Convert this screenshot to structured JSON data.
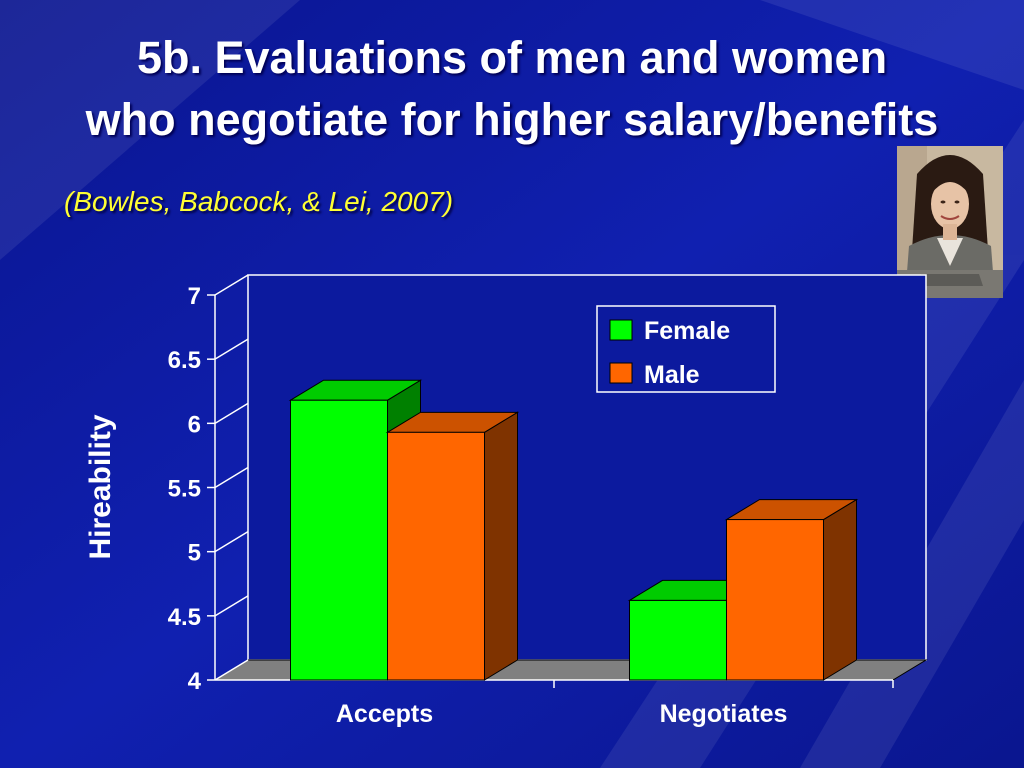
{
  "slide": {
    "title_line1": "5b. Evaluations of men and women",
    "title_line2": "who negotiate for higher salary/benefits",
    "citation": "(Bowles, Babcock, & Lei, 2007)"
  },
  "colors": {
    "background": "#0c1a9e",
    "female_front": "#00ff00",
    "female_top": "#00cc00",
    "female_side": "#008000",
    "male_front": "#ff6600",
    "male_top": "#cc5200",
    "male_side": "#7f3300",
    "floor": "#808080"
  },
  "chart_data": {
    "type": "bar",
    "categories": [
      "Accepts",
      "Negotiates"
    ],
    "series": [
      {
        "name": "Female",
        "values": [
          6.18,
          4.62
        ]
      },
      {
        "name": "Male",
        "values": [
          5.93,
          5.25
        ]
      }
    ],
    "ylabel": "Hireability",
    "xlabel": "",
    "ylim": [
      4,
      7
    ],
    "yticks": [
      "4",
      "4.5",
      "5",
      "5.5",
      "6",
      "6.5",
      "7"
    ],
    "legend_position": "top-right",
    "grid": false,
    "style": "3d"
  }
}
